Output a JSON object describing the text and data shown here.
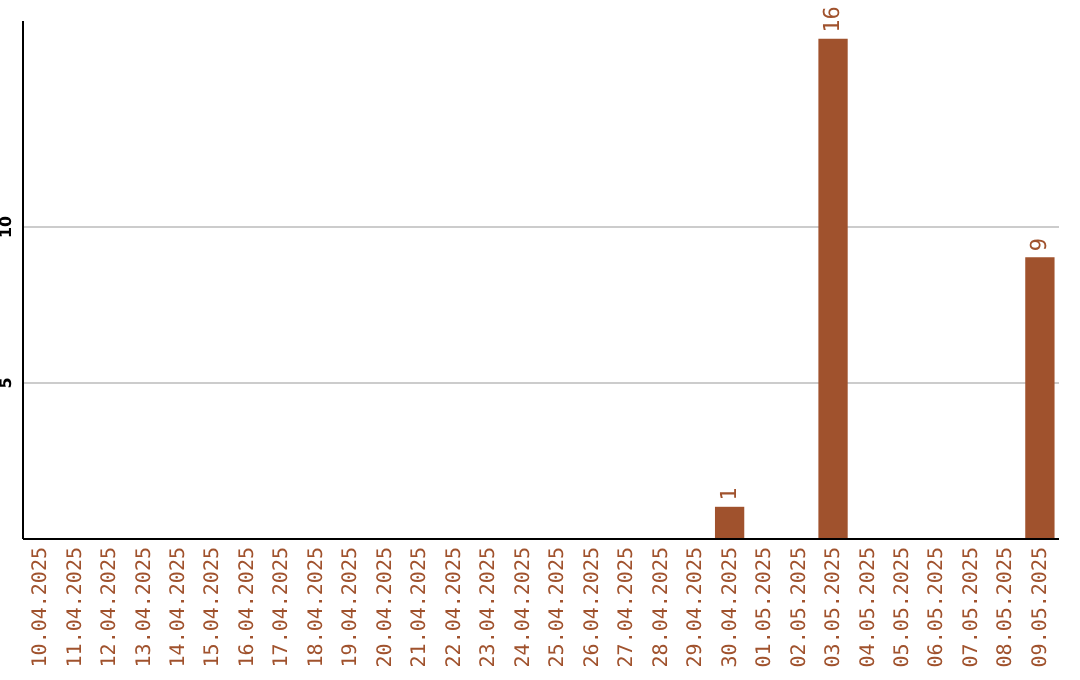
{
  "chart_data": {
    "type": "bar",
    "categories": [
      "10.04.2025",
      "11.04.2025",
      "12.04.2025",
      "13.04.2025",
      "14.04.2025",
      "15.04.2025",
      "16.04.2025",
      "17.04.2025",
      "18.04.2025",
      "19.04.2025",
      "20.04.2025",
      "21.04.2025",
      "22.04.2025",
      "23.04.2025",
      "24.04.2025",
      "25.04.2025",
      "26.04.2025",
      "27.04.2025",
      "28.04.2025",
      "29.04.2025",
      "30.04.2025",
      "01.05.2025",
      "02.05.2025",
      "03.05.2025",
      "04.05.2025",
      "05.05.2025",
      "06.05.2025",
      "07.05.2025",
      "08.05.2025",
      "09.05.2025"
    ],
    "values": [
      0,
      0,
      0,
      0,
      0,
      0,
      0,
      0,
      0,
      0,
      0,
      0,
      0,
      0,
      0,
      0,
      0,
      0,
      0,
      0,
      1,
      0,
      0,
      16,
      0,
      0,
      0,
      0,
      0,
      9
    ],
    "value_labels": [
      null,
      null,
      null,
      null,
      null,
      null,
      null,
      null,
      null,
      null,
      null,
      null,
      null,
      null,
      null,
      null,
      null,
      null,
      null,
      null,
      "1",
      null,
      null,
      "16",
      null,
      null,
      null,
      null,
      null,
      "9"
    ],
    "color": "#a0522d",
    "ylim": [
      0,
      16.6
    ],
    "yticks": [
      5,
      10
    ],
    "grid": "y"
  }
}
